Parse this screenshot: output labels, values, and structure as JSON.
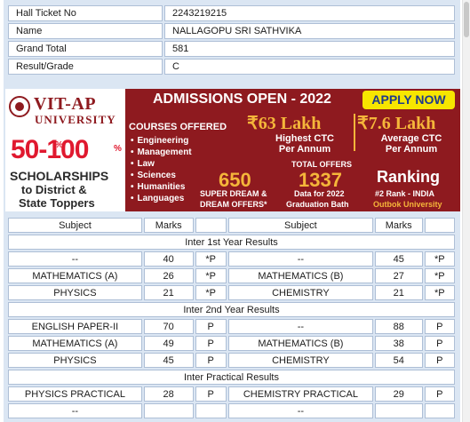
{
  "info": [
    {
      "label": "Hall Ticket No",
      "value": "2243219215"
    },
    {
      "label": "Name",
      "value": "NALLAGOPU SRI SATHVIKA"
    },
    {
      "label": "Grand Total",
      "value": "581"
    },
    {
      "label": "Result/Grade",
      "value": "C"
    }
  ],
  "ad": {
    "brand": "VIT-AP",
    "university": "UNIVERSITY",
    "scholarship_range": "50-100",
    "percent": "%",
    "scholarships": "SCHOLARSHIPS",
    "to_line1": "to District &",
    "to_line2": "State Toppers",
    "admissions": "ADMISSIONS OPEN - 2022",
    "apply": "APPLY NOW",
    "courses_title": "COURSES OFFERED",
    "courses": [
      "Engineering",
      "Management",
      "Law",
      "Sciences",
      "Humanities",
      "Languages"
    ],
    "highest_ctc": "₹63 Lakh",
    "highest_ctc_sub1": "Highest CTC",
    "highest_ctc_sub2": "Per Annum",
    "avg_ctc": "₹7.6 Lakh",
    "avg_ctc_sub1": "Average CTC",
    "avg_ctc_sub2": "Per Annum",
    "dream_num": "650",
    "dream_sub1": "SUPER DREAM &",
    "dream_sub2": "DREAM OFFERS*",
    "total_offers": "TOTAL OFFERS",
    "offers_num": "1337",
    "offers_sub1": "Data for 2022",
    "offers_sub2": "Graduation Bath",
    "ranking": "Ranking",
    "rank_sub1": "#2 Rank - INDIA",
    "rank_sub2": "Outbok University",
    "colors": {
      "maroon": "#8e1a1f",
      "gold": "#f5b63a",
      "red": "#e0192f",
      "yellow": "#f7e600"
    }
  },
  "marks": {
    "headers": [
      "Subject",
      "Marks",
      "",
      "Subject",
      "Marks",
      ""
    ],
    "sections": [
      {
        "title": "Inter 1st Year Results",
        "rows": [
          [
            "--",
            "40",
            "*P",
            "--",
            "45",
            "*P"
          ],
          [
            "MATHEMATICS (A)",
            "26",
            "*P",
            "MATHEMATICS (B)",
            "27",
            "*P"
          ],
          [
            "PHYSICS",
            "21",
            "*P",
            "CHEMISTRY",
            "21",
            "*P"
          ]
        ]
      },
      {
        "title": "Inter 2nd Year Results",
        "rows": [
          [
            "ENGLISH PAPER-II",
            "70",
            "P",
            "--",
            "88",
            "P"
          ],
          [
            "MATHEMATICS (A)",
            "49",
            "P",
            "MATHEMATICS (B)",
            "38",
            "P"
          ],
          [
            "PHYSICS",
            "45",
            "P",
            "CHEMISTRY",
            "54",
            "P"
          ]
        ]
      },
      {
        "title": "Inter Practical Results",
        "rows": [
          [
            "PHYSICS PRACTICAL",
            "28",
            "P",
            "CHEMISTRY PRACTICAL",
            "29",
            "P"
          ],
          [
            "--",
            "",
            "",
            "--",
            "",
            ""
          ]
        ]
      }
    ]
  }
}
